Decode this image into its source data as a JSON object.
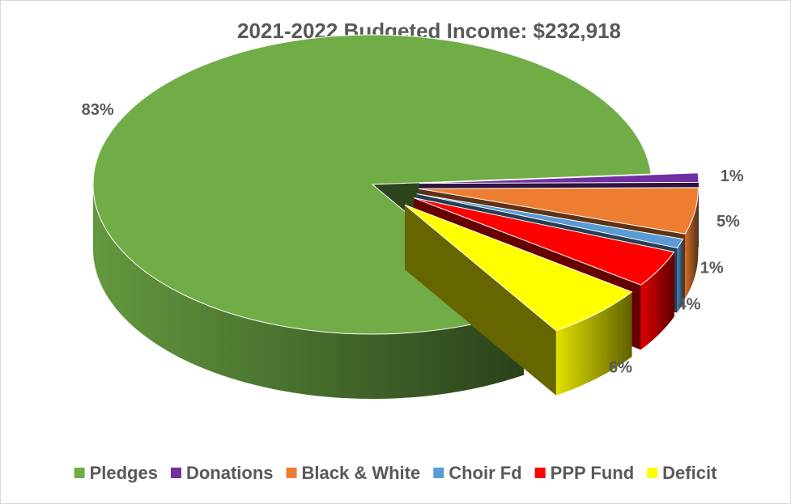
{
  "chart_data": {
    "type": "pie",
    "title": "2021-2022 Budgeted Income:  $232,918",
    "categories": [
      "Pledges",
      "Donations",
      "Black & White",
      "Choir Fd",
      "PPP Fund",
      "Deficit"
    ],
    "values": [
      83,
      1,
      5,
      1,
      4,
      6
    ],
    "value_labels": [
      "83%",
      "1%",
      "5%",
      "1%",
      "4%",
      "6%"
    ],
    "colors": [
      "#70ad47",
      "#7030a0",
      "#ed7d31",
      "#5b9bd5",
      "#ff0000",
      "#ffff00"
    ],
    "legend": "bottom"
  }
}
